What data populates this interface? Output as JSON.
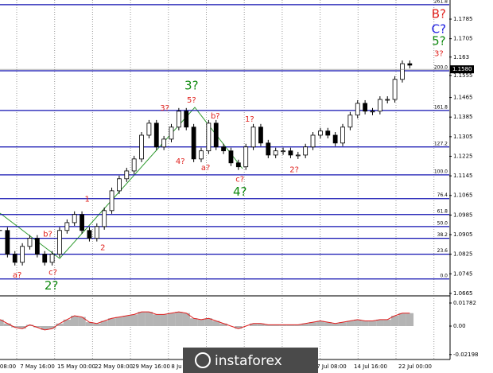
{
  "chart_data": {
    "type": "candlestick",
    "ylim": [
      1.0655,
      1.1863
    ],
    "yticks": [
      1.1785,
      1.1705,
      1.163,
      1.1555,
      1.1465,
      1.1385,
      1.1305,
      1.1225,
      1.1145,
      1.1065,
      1.0985,
      1.0905,
      1.0825,
      1.0745,
      1.0665
    ],
    "xlim": [
      0,
      60.3
    ],
    "x": [
      0,
      1,
      2,
      3,
      4,
      5,
      6,
      7,
      8,
      9,
      10,
      11,
      12,
      13,
      14,
      15,
      16,
      17,
      18,
      19,
      20,
      21,
      22,
      23,
      24,
      25,
      26,
      27,
      28,
      29,
      30,
      31,
      32,
      33,
      34,
      35,
      36,
      37,
      38,
      39,
      40,
      41,
      42,
      43,
      44,
      45,
      46,
      47,
      48,
      49,
      50,
      51,
      52,
      53,
      54,
      55
    ],
    "close": [
      1.0922,
      1.0825,
      1.0792,
      1.0857,
      1.089,
      1.0825,
      1.0792,
      1.0825,
      1.0922,
      1.0954,
      1.0987,
      1.0922,
      1.089,
      1.0938,
      1.1003,
      1.1084,
      1.1133,
      1.1165,
      1.1214,
      1.1311,
      1.136,
      1.1263,
      1.1295,
      1.1344,
      1.1409,
      1.1344,
      1.1214,
      1.1247,
      1.136,
      1.1263,
      1.1247,
      1.1198,
      1.1182,
      1.1263,
      1.1344,
      1.1279,
      1.123,
      1.1247,
      1.1247,
      1.123,
      1.123,
      1.1263,
      1.1311,
      1.1328,
      1.1311,
      1.1279,
      1.1344,
      1.1393,
      1.1441,
      1.1409,
      1.1409,
      1.1457,
      1.1457,
      1.1539,
      1.1603,
      1.1597
    ],
    "current_price": {
      "value": 1.158,
      "label": "1.1580"
    },
    "fib_levels": [
      {
        "label": "261.8",
        "value": 1.1844
      },
      {
        "label": "200.0",
        "value": 1.1574
      },
      {
        "label": "161.8",
        "value": 1.1412
      },
      {
        "label": "127.2",
        "value": 1.1263
      },
      {
        "label": "100.0",
        "value": 1.1149
      },
      {
        "label": "76.4",
        "value": 1.1052
      },
      {
        "label": "61.8",
        "value": 1.0987
      },
      {
        "label": "50.0",
        "value": 1.0938
      },
      {
        "label": "38.2",
        "value": 1.089
      },
      {
        "label": "23.6",
        "value": 1.0825
      },
      {
        "label": "0.0",
        "value": 1.0724
      }
    ],
    "wave_labels": [
      {
        "text": "a?",
        "color": "#e0201c",
        "x": 2.3,
        "y": 1.074
      },
      {
        "text": "2?",
        "color": "#108a10",
        "x": 6.9,
        "y": 1.0695,
        "big": true
      },
      {
        "text": "c?",
        "color": "#e0201c",
        "x": 7.1,
        "y": 1.075
      },
      {
        "text": "b?",
        "color": "#e0201c",
        "x": 6.4,
        "y": 1.0906
      },
      {
        "text": "1",
        "color": "#e0201c",
        "x": 11.7,
        "y": 1.1049
      },
      {
        "text": "2",
        "color": "#e0201c",
        "x": 13.8,
        "y": 1.0851
      },
      {
        "text": "3?",
        "color": "#e0201c",
        "x": 22.1,
        "y": 1.1422
      },
      {
        "text": "5?",
        "color": "#e0201c",
        "x": 25.7,
        "y": 1.1454
      },
      {
        "text": "3?",
        "color": "#108a10",
        "x": 25.7,
        "y": 1.1513,
        "big": true
      },
      {
        "text": "4?",
        "color": "#e0201c",
        "x": 24.2,
        "y": 1.1204
      },
      {
        "text": "a?",
        "color": "#e0201c",
        "x": 27.6,
        "y": 1.1178
      },
      {
        "text": "b?",
        "color": "#e0201c",
        "x": 28.9,
        "y": 1.1389
      },
      {
        "text": "c?",
        "color": "#e0201c",
        "x": 32.2,
        "y": 1.113
      },
      {
        "text": "4?",
        "color": "#108a10",
        "x": 32.2,
        "y": 1.1078,
        "big": true
      },
      {
        "text": "1?",
        "color": "#e0201c",
        "x": 33.5,
        "y": 1.1376
      },
      {
        "text": "2?",
        "color": "#e0201c",
        "x": 39.5,
        "y": 1.1169
      },
      {
        "text": "B?",
        "color": "#e0201c",
        "x": 58.9,
        "y": 1.1805,
        "big": true
      },
      {
        "text": "C?",
        "color": "#1a1ae0",
        "x": 58.9,
        "y": 1.1743,
        "big": true
      },
      {
        "text": "5?",
        "color": "#108a10",
        "x": 58.9,
        "y": 1.1694,
        "big": true
      },
      {
        "text": "3?",
        "color": "#e0201c",
        "x": 58.9,
        "y": 1.1643
      }
    ],
    "oscillator": {
      "ylim": [
        -0.0258,
        0.0215
      ],
      "yticks": [
        {
          "value": 0.01782,
          "label": "0.01782"
        },
        {
          "value": 0,
          "label": "0.00"
        },
        {
          "value": -0.02198,
          "label": "-0.02198"
        }
      ],
      "values": [
        0.005,
        0.002,
        -0.001,
        -0.002,
        0.001,
        -0.001,
        -0.003,
        -0.002,
        0.002,
        0.005,
        0.008,
        0.007,
        0.003,
        0.002,
        0.004,
        0.006,
        0.007,
        0.008,
        0.009,
        0.011,
        0.011,
        0.009,
        0.009,
        0.01,
        0.011,
        0.01,
        0.006,
        0.005,
        0.006,
        0.004,
        0.002,
        0.0,
        -0.002,
        0.0,
        0.002,
        0.002,
        0.001,
        0.001,
        0.001,
        0.001,
        0.001,
        0.002,
        0.003,
        0.004,
        0.003,
        0.002,
        0.003,
        0.004,
        0.005,
        0.004,
        0.004,
        0.005,
        0.005,
        0.008,
        0.01,
        0.01
      ]
    },
    "time_labels": [
      "08:00",
      "7 May 16:00",
      "15 May 00:00",
      "22 May 08:00",
      "29 May 16:00",
      "8 Ju",
      "7 Jul 08:00",
      "14 Jul 16:00",
      "22 Jul 00:00"
    ],
    "watermark": "instaforex"
  }
}
